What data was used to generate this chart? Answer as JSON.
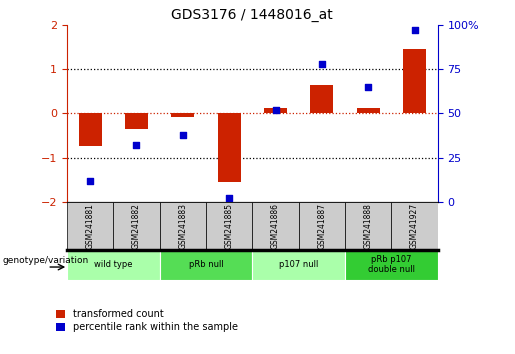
{
  "title": "GDS3176 / 1448016_at",
  "samples": [
    "GSM241881",
    "GSM241882",
    "GSM241883",
    "GSM241885",
    "GSM241886",
    "GSM241887",
    "GSM241888",
    "GSM241927"
  ],
  "red_values": [
    -0.75,
    -0.35,
    -0.08,
    -1.55,
    0.12,
    0.65,
    0.12,
    1.45
  ],
  "blue_percentiles": [
    12,
    32,
    38,
    2,
    52,
    78,
    65,
    97
  ],
  "ylim_left": [
    -2.0,
    2.0
  ],
  "ylim_right": [
    0,
    100
  ],
  "yticks_left": [
    -2,
    -1,
    0,
    1,
    2
  ],
  "yticks_right": [
    0,
    25,
    50,
    75,
    100
  ],
  "red_color": "#CC2200",
  "blue_color": "#0000CC",
  "legend_red": "transformed count",
  "legend_blue": "percentile rank within the sample",
  "genotype_label": "genotype/variation",
  "groups": [
    {
      "label": "wild type",
      "start": 0,
      "end": 1,
      "color": "#AAFFAA"
    },
    {
      "label": "pRb null",
      "start": 2,
      "end": 3,
      "color": "#55DD55"
    },
    {
      "label": "p107 null",
      "start": 4,
      "end": 5,
      "color": "#AAFFAA"
    },
    {
      "label": "pRb p107\ndouble null",
      "start": 6,
      "end": 7,
      "color": "#33CC33"
    }
  ],
  "sample_box_color": "#CCCCCC",
  "bg_color": "#FFFFFF"
}
